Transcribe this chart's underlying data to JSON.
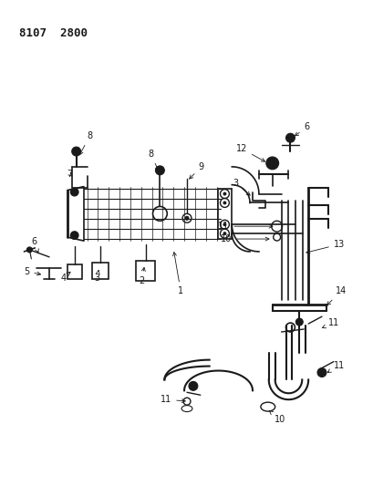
{
  "title": "8107 2800",
  "bg": "#ffffff",
  "lc": "#1a1a1a",
  "fig_w": 4.1,
  "fig_h": 5.33,
  "dpi": 100
}
